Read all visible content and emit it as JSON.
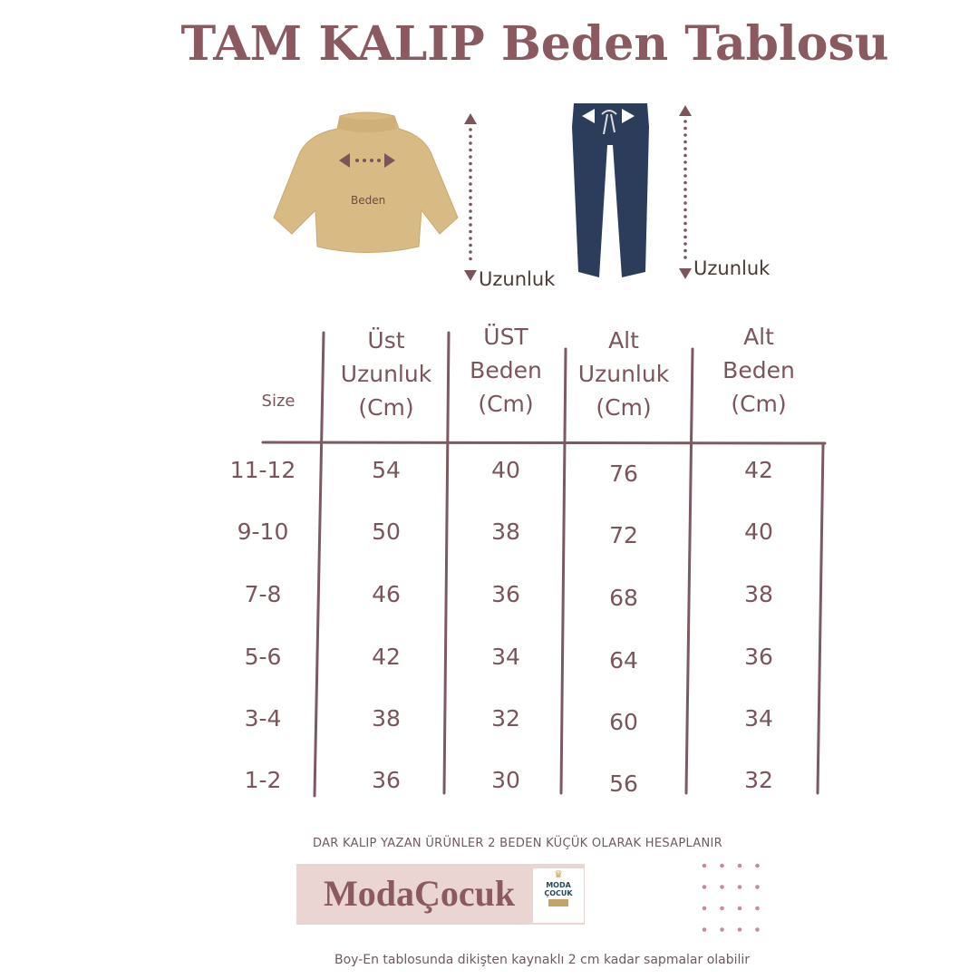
{
  "title": "TAM KALIP Beden Tablosu",
  "illustration": {
    "sweater_label": "Beden",
    "top_length_label": "Uzunluk",
    "bottom_length_label": "Uzunluk",
    "sweater_color": "#d8bb84",
    "pants_color": "#2c3d5c",
    "arrow_color": "#7d545c"
  },
  "table": {
    "headers": [
      {
        "lines": [
          "Size"
        ]
      },
      {
        "lines": [
          "Üst",
          "Uzunluk",
          "(Cm)"
        ]
      },
      {
        "lines": [
          "ÜST",
          "Beden",
          "(Cm)"
        ]
      },
      {
        "lines": [
          "Alt",
          "Uzunluk",
          "(Cm)"
        ]
      },
      {
        "lines": [
          "Alt",
          "Beden",
          "(Cm)"
        ]
      }
    ],
    "rows": [
      [
        "11-12",
        "54",
        "40",
        "76",
        "42"
      ],
      [
        "9-10",
        "50",
        "38",
        "72",
        "40"
      ],
      [
        "7-8",
        "46",
        "36",
        "68",
        "38"
      ],
      [
        "5-6",
        "42",
        "34",
        "64",
        "36"
      ],
      [
        "3-4",
        "38",
        "32",
        "60",
        "34"
      ],
      [
        "1-2",
        "36",
        "30",
        "56",
        "32"
      ]
    ],
    "line_color": "#7d5a62"
  },
  "note": "DAR KALIP YAZAN ÜRÜNLER 2 BEDEN KÜÇÜK OLARAK  HESAPLANIR",
  "brand": {
    "name": "ModaÇocuk",
    "logo_line1": "MODA",
    "logo_line2": "ÇOCUK",
    "bg_color": "#ead5d3"
  },
  "footer": "Boy-En tablosunda dikişten kaynaklı 2 cm kadar sapmalar olabilir"
}
